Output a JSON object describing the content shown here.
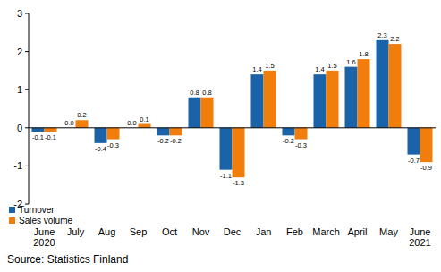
{
  "chart_data": {
    "type": "bar",
    "categories": [
      "June 2020",
      "July",
      "Aug",
      "Sep",
      "Oct",
      "Nov",
      "Dec",
      "Jan",
      "Feb",
      "March",
      "April",
      "May",
      "June 2021"
    ],
    "series": [
      {
        "name": "Turnover",
        "color": "#1b63a8",
        "values": [
          -0.1,
          0.0,
          -0.4,
          0.0,
          -0.2,
          0.8,
          -1.1,
          1.4,
          -0.2,
          1.4,
          1.6,
          2.3,
          -0.7
        ],
        "value_labels": [
          "-0.1",
          "0.0",
          "-0.4",
          "0.0",
          "-0.2",
          "0.8",
          "-1.1",
          "1.4",
          "-0.2",
          "1.4",
          "1.6",
          "2.3",
          "-0.7"
        ]
      },
      {
        "name": "Sales volume",
        "color": "#f07d0c",
        "values": [
          -0.1,
          0.2,
          -0.3,
          0.1,
          -0.2,
          0.8,
          -1.3,
          1.5,
          -0.3,
          1.5,
          1.8,
          2.2,
          -0.9
        ],
        "value_labels": [
          "-0.1",
          "0.2",
          "-0.3",
          "0.1",
          "-0.2",
          "0.8",
          "-1.3",
          "1.5",
          "-0.3",
          "1.5",
          "1.8",
          "2.2",
          "-0.9"
        ]
      }
    ],
    "ylim": [
      -2,
      3
    ],
    "yticks": [
      -2,
      -1,
      0,
      1,
      2,
      3
    ],
    "grid": false,
    "legend": "bottom-left",
    "data_labels": true,
    "source": "Source: Statistics Finland"
  }
}
